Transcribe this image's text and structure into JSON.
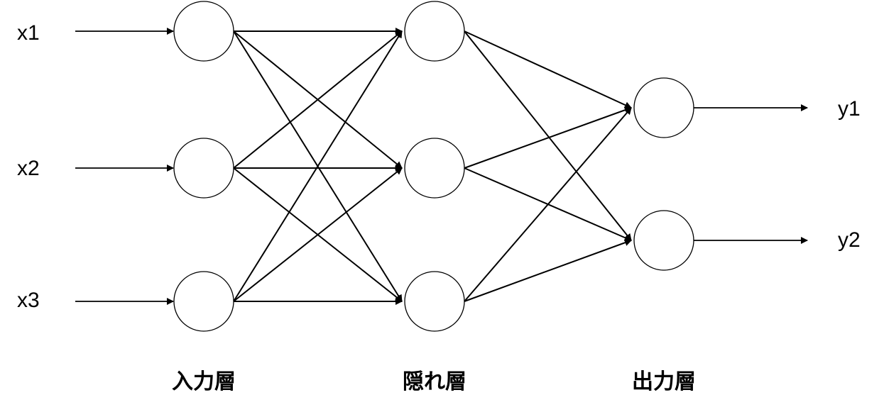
{
  "network": {
    "inputs": [
      "x1",
      "x2",
      "x3"
    ],
    "outputs": [
      "y1",
      "y2"
    ],
    "layers": [
      {
        "name": "入力層",
        "node_count": 3
      },
      {
        "name": "隠れ層",
        "node_count": 3
      },
      {
        "name": "出力層",
        "node_count": 2
      }
    ],
    "connections": "fully-connected",
    "line_color": "#000000",
    "node_fill": "#ffffff"
  }
}
